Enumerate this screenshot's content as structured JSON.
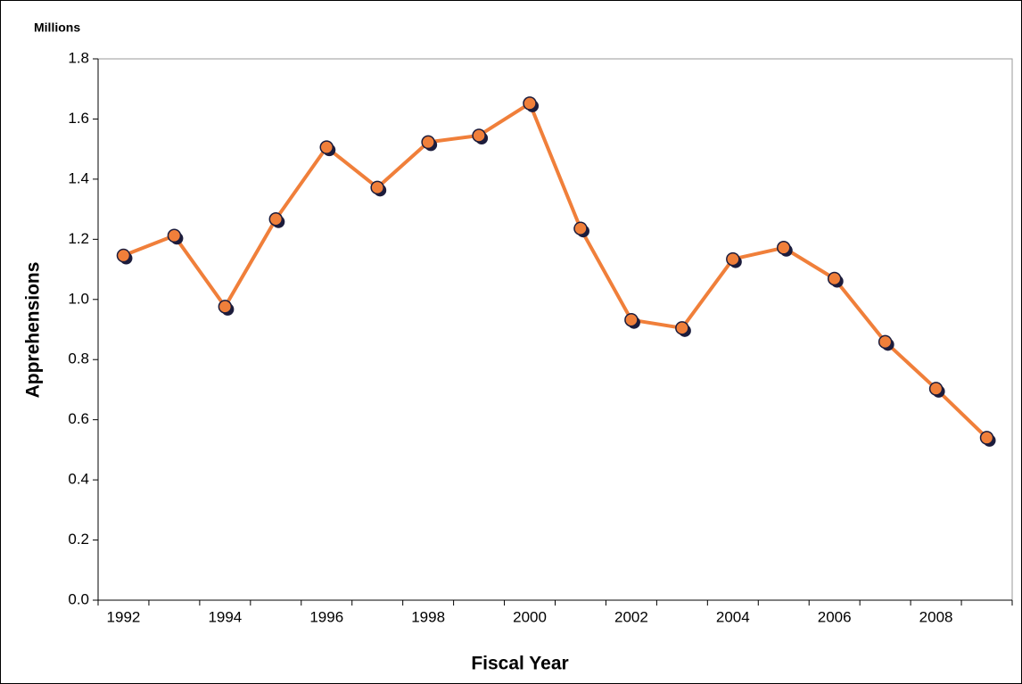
{
  "chart_data": {
    "type": "line",
    "unit_label": "Millions",
    "y_label": "Apprehensions",
    "x_label": "Fiscal Year",
    "categories": [
      "1992",
      null,
      "1994",
      null,
      "1996",
      null,
      "1998",
      null,
      "2000",
      null,
      "2002",
      null,
      "2004",
      null,
      "2006",
      null,
      "2008",
      null
    ],
    "series": [
      {
        "name": "Apprehensions",
        "color": "#f07f3a",
        "marker_edge": "#1c1c3c",
        "values": [
          1.146,
          1.212,
          0.976,
          1.267,
          1.506,
          1.372,
          1.523,
          1.545,
          1.652,
          1.236,
          0.932,
          0.905,
          1.134,
          1.172,
          1.069,
          0.859,
          0.703,
          0.54
        ]
      }
    ],
    "ylim": [
      0,
      1.8
    ],
    "yticks": [
      {
        "value": 0,
        "label": "0.0"
      },
      0.2,
      0.4,
      0.6,
      0.8,
      {
        "value": 1,
        "label": "1.0"
      },
      1.2,
      1.4,
      1.6,
      1.8
    ],
    "grid": false
  }
}
